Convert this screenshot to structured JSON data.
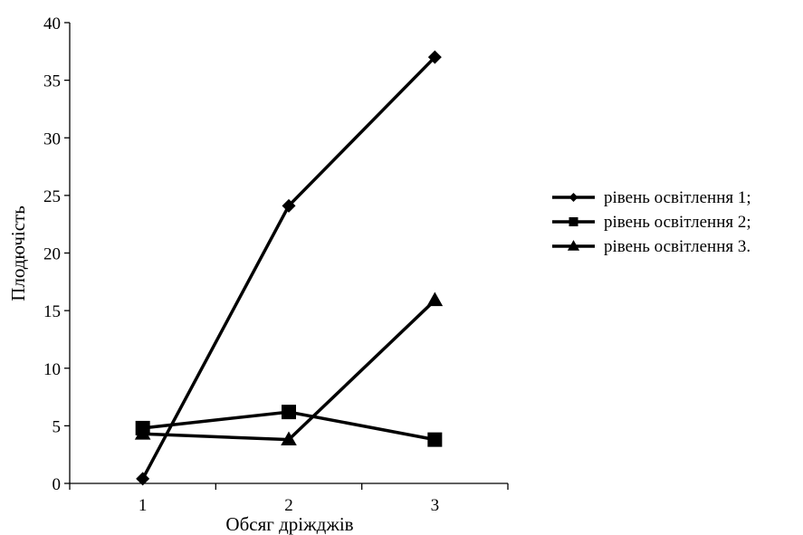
{
  "chart_data": {
    "type": "line",
    "xlabel": "Обсяг дріжджів",
    "ylabel": "Плодючість",
    "ylim": [
      0,
      40
    ],
    "y_ticks": [
      0,
      5,
      10,
      15,
      20,
      25,
      30,
      35,
      40
    ],
    "x_ticks": [
      1,
      2,
      3
    ],
    "x_range": [
      0.5,
      3.5
    ],
    "grid": false,
    "legend_position": "right",
    "line_color": "#000000",
    "series": [
      {
        "name": "рівень освітлення 1;",
        "marker": "diamond",
        "x": [
          1,
          2,
          3
        ],
        "values": [
          0.4,
          24.1,
          37.0
        ]
      },
      {
        "name": "рівень освітлення 2;",
        "marker": "square",
        "x": [
          1,
          2,
          3
        ],
        "values": [
          4.8,
          6.2,
          3.8
        ]
      },
      {
        "name": "рівень освітлення 3.",
        "marker": "triangle",
        "x": [
          1,
          2,
          3
        ],
        "values": [
          4.3,
          3.8,
          15.9
        ]
      }
    ]
  }
}
